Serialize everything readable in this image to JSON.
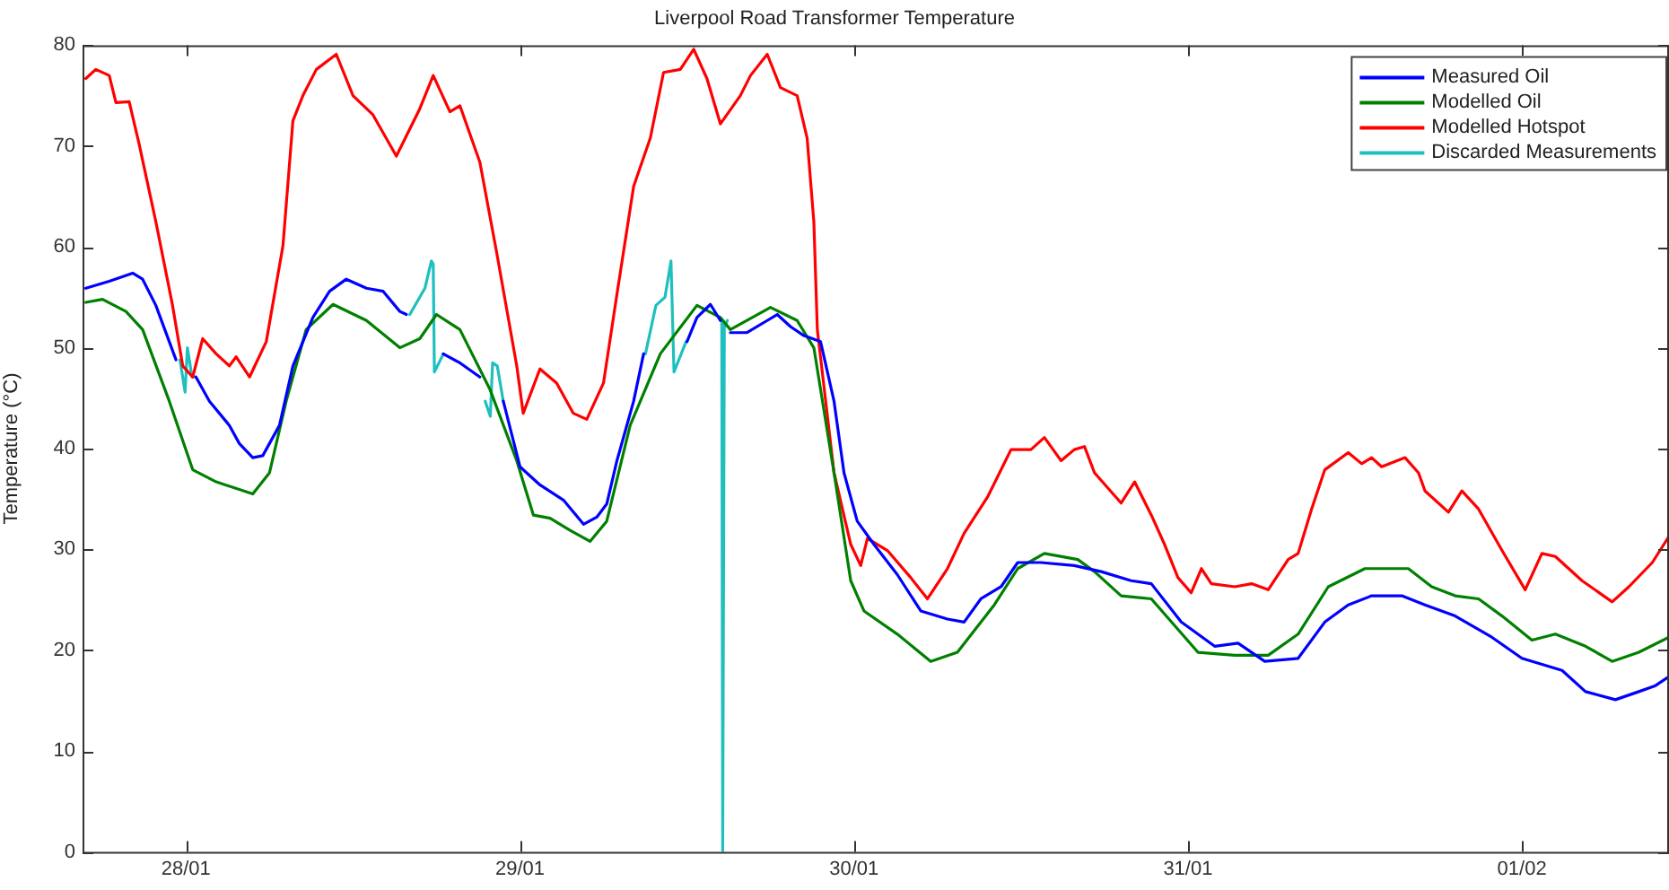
{
  "chart_data": {
    "type": "line",
    "title": "Liverpool Road Transformer Temperature",
    "ylabel": "Temperature (°C)",
    "xlim": [
      "--01-27T16:34",
      "--02-01T10:34"
    ],
    "xticks": [
      {
        "value": "--01-28",
        "label": "28/01"
      },
      {
        "value": "--01-29",
        "label": "29/01"
      },
      {
        "value": "--01-30",
        "label": "30/01"
      },
      {
        "value": "--01-31",
        "label": "31/01"
      },
      {
        "value": "--02-01",
        "label": "01/02"
      }
    ],
    "ylim": [
      0,
      80
    ],
    "yticks": [
      0,
      10,
      20,
      30,
      40,
      50,
      60,
      70,
      80
    ],
    "grid": false,
    "legend": "top right",
    "marker": "none",
    "line_style": "solid",
    "series": [
      {
        "name": "Measured Oil",
        "color": "#0000ff",
        "x": [
          "--01-27T16:48",
          "--01-27T18:29",
          "--01-27T20:10",
          "--01-27T20:53",
          "--01-27T21:50",
          "--01-27T22:48",
          "--01-27T23:17",
          "--01-27T23:46",
          "--01-28T00:43",
          "--01-28T01:41",
          "--01-28T03:07",
          "--01-28T03:50",
          "--01-28T04:48",
          "--01-28T05:31",
          "--01-28T06:43",
          "--01-28T07:41",
          "--01-28T09:07",
          "--01-28T10:19",
          "--01-28T11:31",
          "--01-28T12:58",
          "--01-28T14:10",
          "--01-28T15:22",
          "--01-28T15:50",
          "--01-28T16:48",
          "--01-28T18:29",
          "--01-28T19:41",
          "--01-28T21:07",
          "--01-28T21:50",
          "--01-28T22:48",
          "--01-29T00:00",
          "--01-29T01:26",
          "--01-29T03:07",
          "--01-29T04:34",
          "--01-29T05:31",
          "--01-29T06:14",
          "--01-29T06:58",
          "--01-29T08:10",
          "--01-29T08:53",
          "--01-29T10:34",
          "--01-29T12:00",
          "--01-29T12:43",
          "--01-29T13:41",
          "--01-29T14:24",
          "--01-29T14:38",
          "--01-29T15:07",
          "--01-29T16:19",
          "--01-29T17:46",
          "--01-29T18:29",
          "--01-29T19:26",
          "--01-29T20:24",
          "--01-29T21:36",
          "--01-29T22:34",
          "--01-29T23:17",
          "--01-30T00:14",
          "--01-30T01:26",
          "--01-30T03:07",
          "--01-30T04:48",
          "--01-30T06:43",
          "--01-30T07:55",
          "--01-30T09:07",
          "--01-30T10:34",
          "--01-30T11:46",
          "--01-30T13:26",
          "--01-30T15:50",
          "--01-30T17:46",
          "--01-30T19:55",
          "--01-30T21:22",
          "--01-30T23:31",
          "--01-31T01:55",
          "--01-31T03:36",
          "--01-31T05:31",
          "--01-31T07:55",
          "--01-31T09:50",
          "--01-31T11:31",
          "--01-31T13:12",
          "--01-31T15:22",
          "--01-31T17:02",
          "--01-31T19:12",
          "--01-31T21:50",
          "--02-01T00:00",
          "--02-01T02:53",
          "--02-01T04:34",
          "--02-01T06:43",
          "--02-01T08:24",
          "--02-01T09:36",
          "--02-01T10:34"
        ],
        "values": [
          55.9,
          56.6,
          57.4,
          56.8,
          54.2,
          50.6,
          48.8,
          null,
          47.1,
          44.7,
          42.3,
          40.5,
          39.1,
          39.3,
          42.3,
          48.2,
          53,
          55.6,
          56.8,
          55.9,
          55.6,
          53.6,
          53.3,
          null,
          49.4,
          48.5,
          47.1,
          null,
          44.7,
          38.2,
          36.4,
          34.9,
          32.5,
          33.2,
          34.5,
          38.8,
          44.7,
          49.4,
          null,
          50.6,
          53,
          54.3,
          52.7,
          null,
          51.5,
          51.5,
          52.7,
          53.3,
          52.1,
          51.2,
          50.6,
          44.7,
          37.6,
          32.8,
          30.5,
          27.5,
          23.9,
          23.1,
          22.8,
          25.1,
          26.3,
          28.7,
          28.7,
          28.4,
          27.8,
          26.9,
          26.6,
          22.8,
          20.4,
          20.7,
          18.9,
          19.2,
          22.8,
          24.5,
          25.4,
          25.4,
          24.5,
          23.4,
          21.3,
          19.2,
          18,
          15.9,
          15.1,
          15.9,
          16.5,
          17.4
        ]
      },
      {
        "name": "Modelled Oil",
        "color": "#008000",
        "x": [
          "--01-27T16:48",
          "--01-27T18:00",
          "--01-27T19:41",
          "--01-27T20:53",
          "--01-27T22:48",
          "--01-28T00:29",
          "--01-28T02:10",
          "--01-28T04:48",
          "--01-28T06:00",
          "--01-28T07:12",
          "--01-28T08:38",
          "--01-28T10:34",
          "--01-28T12:58",
          "--01-28T15:22",
          "--01-28T16:48",
          "--01-28T18:00",
          "--01-28T19:41",
          "--01-28T21:50",
          "--01-28T23:46",
          "--01-29T00:58",
          "--01-29T02:10",
          "--01-29T03:36",
          "--01-29T05:02",
          "--01-29T06:14",
          "--01-29T07:55",
          "--01-29T10:05",
          "--01-29T12:43",
          "--01-29T14:24",
          "--01-29T15:07",
          "--01-29T18:00",
          "--01-29T19:55",
          "--01-29T21:07",
          "--01-29T22:34",
          "--01-29T23:46",
          "--01-30T00:43",
          "--01-30T03:07",
          "--01-30T05:31",
          "--01-30T07:26",
          "--01-30T10:05",
          "--01-30T11:46",
          "--01-30T13:41",
          "--01-30T16:05",
          "--01-30T17:17",
          "--01-30T19:12",
          "--01-30T21:22",
          "--01-31T00:43",
          "--01-31T03:22",
          "--01-31T05:46",
          "--01-31T07:55",
          "--01-31T10:05",
          "--01-31T12:43",
          "--01-31T15:50",
          "--01-31T17:31",
          "--01-31T19:12",
          "--01-31T20:53",
          "--01-31T22:34",
          "--02-01T00:43",
          "--02-01T02:24",
          "--02-01T04:34",
          "--02-01T06:29",
          "--02-01T08:24",
          "--02-01T10:34"
        ],
        "values": [
          54.5,
          54.8,
          53.6,
          51.8,
          44.7,
          37.9,
          36.7,
          35.5,
          37.6,
          44.7,
          51.8,
          54.3,
          52.7,
          50,
          50.9,
          53.3,
          51.8,
          45.9,
          38.8,
          33.4,
          33.1,
          31.9,
          30.8,
          32.8,
          42.3,
          49.4,
          54.2,
          53,
          51.8,
          54,
          52.7,
          50,
          37.6,
          26.9,
          23.9,
          21.6,
          18.9,
          19.8,
          24.5,
          28.1,
          29.6,
          29,
          27.8,
          25.4,
          25.1,
          19.8,
          19.5,
          19.5,
          21.6,
          26.3,
          28.1,
          28.1,
          26.3,
          25.4,
          25.1,
          23.4,
          21,
          21.6,
          20.4,
          18.9,
          19.8,
          21.3
        ]
      },
      {
        "name": "Modelled Hotspot",
        "color": "#ff0000",
        "x": [
          "--01-27T16:48",
          "--01-27T17:31",
          "--01-27T18:29",
          "--01-27T18:58",
          "--01-27T19:55",
          "--01-27T20:38",
          "--01-27T21:50",
          "--01-27T23:02",
          "--01-27T23:46",
          "--01-28T00:29",
          "--01-28T01:12",
          "--01-28T02:10",
          "--01-28T03:07",
          "--01-28T03:36",
          "--01-28T04:34",
          "--01-28T05:46",
          "--01-28T06:58",
          "--01-28T07:41",
          "--01-28T08:24",
          "--01-28T09:22",
          "--01-28T10:48",
          "--01-28T12:00",
          "--01-28T13:26",
          "--01-28T15:07",
          "--01-28T16:48",
          "--01-28T17:46",
          "--01-28T18:58",
          "--01-28T19:41",
          "--01-28T21:07",
          "--01-28T22:19",
          "--01-28T23:46",
          "--01-29T00:14",
          "--01-29T01:26",
          "--01-29T02:38",
          "--01-29T03:50",
          "--01-29T04:48",
          "--01-29T06:00",
          "--01-29T06:58",
          "--01-29T08:10",
          "--01-29T09:22",
          "--01-29T10:19",
          "--01-29T11:31",
          "--01-29T12:29",
          "--01-29T13:26",
          "--01-29T14:24",
          "--01-29T15:50",
          "--01-29T16:34",
          "--01-29T17:46",
          "--01-29T18:43",
          "--01-29T19:55",
          "--01-29T20:38",
          "--01-29T21:07",
          "--01-29T21:22",
          "--01-29T22:34",
          "--01-29T23:46",
          "--01-30T00:29",
          "--01-30T00:58",
          "--01-30T02:24",
          "--01-30T04:05",
          "--01-30T05:17",
          "--01-30T06:43",
          "--01-30T07:55",
          "--01-30T09:36",
          "--01-30T11:17",
          "--01-30T12:43",
          "--01-30T13:41",
          "--01-30T14:53",
          "--01-30T15:50",
          "--01-30T16:34",
          "--01-30T17:17",
          "--01-30T19:12",
          "--01-30T20:10",
          "--01-30T21:22",
          "--01-30T22:19",
          "--01-30T23:17",
          "--01-31T00:14",
          "--01-31T00:58",
          "--01-31T01:41",
          "--01-31T03:22",
          "--01-31T04:34",
          "--01-31T05:46",
          "--01-31T07:12",
          "--01-31T07:55",
          "--01-31T08:53",
          "--01-31T09:50",
          "--01-31T11:31",
          "--01-31T12:29",
          "--01-31T13:12",
          "--01-31T13:55",
          "--01-31T15:36",
          "--01-31T16:34",
          "--01-31T17:02",
          "--01-31T18:43",
          "--01-31T19:41",
          "--01-31T20:53",
          "--01-31T22:34",
          "--02-01T00:14",
          "--02-01T01:26",
          "--02-01T02:24",
          "--02-01T04:19",
          "--02-01T06:29",
          "--02-01T07:41",
          "--02-01T09:22",
          "--02-01T10:34"
        ],
        "values": [
          76.7,
          77.6,
          77,
          74.3,
          74.4,
          70.2,
          62.5,
          54.2,
          48.2,
          47.1,
          50.9,
          49.4,
          48.2,
          49.1,
          47.1,
          50.6,
          60.1,
          72.5,
          75,
          77.6,
          79.1,
          75,
          73.1,
          69,
          73.7,
          77,
          73.4,
          74,
          68.4,
          59.5,
          48.2,
          43.5,
          47.9,
          46.5,
          43.5,
          42.9,
          46.5,
          55.3,
          66,
          70.8,
          77.3,
          77.6,
          79.6,
          76.7,
          72.2,
          75,
          77,
          79.1,
          75.8,
          75,
          70.8,
          62.5,
          51.8,
          37.6,
          30.5,
          28.4,
          31.1,
          29.9,
          27.2,
          25.1,
          28.1,
          31.6,
          35.2,
          39.9,
          39.9,
          41.1,
          38.8,
          39.9,
          40.2,
          37.6,
          34.6,
          36.7,
          33.4,
          30.5,
          27.2,
          25.7,
          28.1,
          26.6,
          26.3,
          26.6,
          26,
          29,
          29.6,
          34,
          37.9,
          39.6,
          38.5,
          39.1,
          38.2,
          39.1,
          37.6,
          35.8,
          33.7,
          35.8,
          34,
          29.9,
          26,
          29.6,
          29.3,
          26.9,
          24.8,
          26.3,
          28.7,
          31.3
        ]
      },
      {
        "name": "Discarded Measurements",
        "color": "#1fbfbf",
        "x": [
          "--01-27T23:34",
          "--01-27T23:56",
          "--01-28T00:06",
          "--01-28T00:26",
          "--01-28T00:39",
          "--01-28T07:12",
          "--01-28T16:05",
          "--01-28T17:10",
          "--01-28T17:38",
          "--01-28T17:46",
          "--01-28T17:51",
          "--01-28T18:30",
          "--01-28T20:24",
          "--01-28T21:30",
          "--01-28T21:52",
          "--01-28T22:02",
          "--01-28T22:22",
          "--01-28T22:48",
          "--01-29T04:48",
          "--01-29T09:01",
          "--01-29T09:46",
          "--01-29T10:25",
          "--01-29T10:51",
          "--01-29T11:04",
          "--01-29T11:56",
          "--01-29T13:12",
          "--01-29T14:30",
          "--01-29T14:34",
          "--01-29T14:41",
          "--01-29T14:54"
        ],
        "values": [
          48.8,
          45.6,
          50,
          47.1,
          47.1,
          null,
          53.3,
          55.9,
          58.6,
          58.3,
          47.6,
          49.4,
          null,
          44.7,
          43.2,
          48.5,
          48.2,
          44.7,
          null,
          49.4,
          54.2,
          55,
          58.6,
          47.6,
          50.6,
          null,
          52.7,
          0,
          52,
          52.7
        ]
      }
    ]
  }
}
